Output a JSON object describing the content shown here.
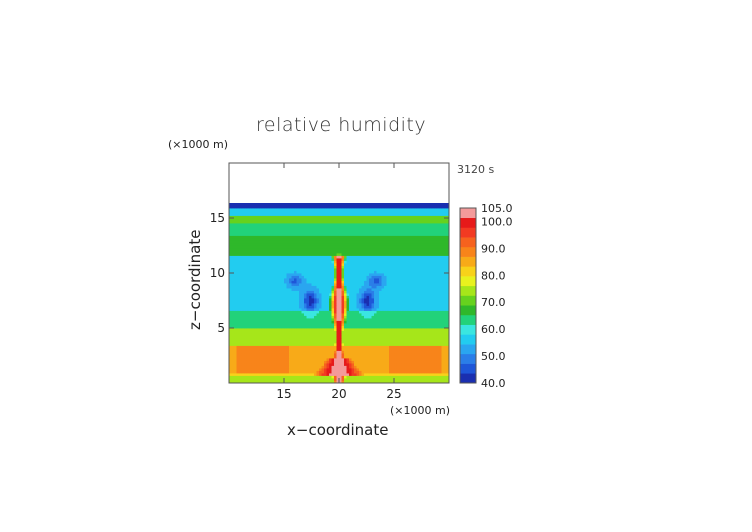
{
  "chart_data": {
    "type": "heatmap",
    "title": "relative humidity",
    "xlabel": "x−coordinate",
    "ylabel": "z−coordinate",
    "x_unit": "(×1000 m)",
    "y_unit": "(×1000 m)",
    "time_label": "3120 s",
    "xlim": [
      10,
      30
    ],
    "ylim": [
      0,
      20
    ],
    "xticks": [
      "15",
      "20",
      "25"
    ],
    "yticks": [
      "5",
      "10",
      "15"
    ],
    "colorbar": {
      "min": 40.0,
      "max": 105.0,
      "tick_labels": [
        "105.0",
        "100.0",
        "90.0",
        "80.0",
        "70.0",
        "60.0",
        "50.0",
        "40.0"
      ],
      "colors": [
        "#1a2fb0",
        "#1e56d8",
        "#2a7ee8",
        "#2aa6f0",
        "#22ccf0",
        "#3ae6e0",
        "#22d27a",
        "#2fb82a",
        "#66d21e",
        "#a6e61a",
        "#e8f21e",
        "#f8d21a",
        "#f8aa18",
        "#f8841a",
        "#f6621e",
        "#f23a22",
        "#e61a1a",
        "#f49a9a"
      ]
    },
    "moist_top_km": 16.0,
    "plume": {
      "center_x_km": 20.0,
      "top_km": 11.5
    }
  }
}
